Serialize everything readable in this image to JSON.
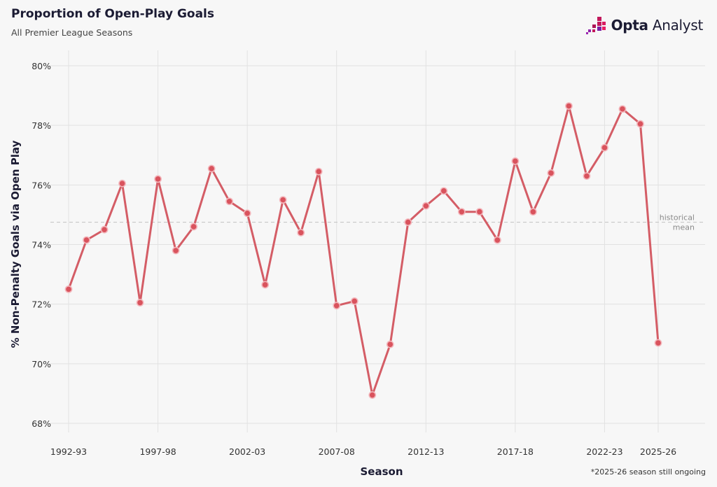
{
  "header": {
    "title": "Proportion of Open-Play Goals",
    "subtitle": "All Premier League Seasons"
  },
  "brand": {
    "name_bold": "Opta",
    "name_regular": "Analyst",
    "icon": "opta-analyst-logo",
    "colors": [
      "#c2185b",
      "#7b1fa2",
      "#e91e63"
    ]
  },
  "footnote": "*2025-26 season still ongoing",
  "colors": {
    "line": "#d45d66",
    "point_fill": "#d9535d",
    "point_stroke": "#f3b7bc",
    "mean_line": "#c8c8c8",
    "grid": "#e2e2e2",
    "background": "#f7f7f7"
  },
  "chart_data": {
    "type": "line",
    "title": "Proportion of Open-Play Goals",
    "subtitle": "All Premier League Seasons",
    "xlabel": "Season",
    "ylabel": "% Non-Penalty Goals via Open Play",
    "ylim": [
      68,
      80
    ],
    "y_ticks": [
      68,
      70,
      72,
      74,
      76,
      78,
      80
    ],
    "y_tick_labels": [
      "68%",
      "70%",
      "72%",
      "74%",
      "76%",
      "78%",
      "80%"
    ],
    "x_tick_labels": [
      "1992-93",
      "1997-98",
      "2002-03",
      "2007-08",
      "2012-13",
      "2017-18",
      "2022-23",
      "2025-26"
    ],
    "grid": true,
    "reference_line": {
      "value": 74.75,
      "label_line1": "historical",
      "label_line2": "mean"
    },
    "categories": [
      "1992-93",
      "1993-94",
      "1994-95",
      "1995-96",
      "1996-97",
      "1997-98",
      "1998-99",
      "1999-00",
      "2000-01",
      "2001-02",
      "2002-03",
      "2003-04",
      "2004-05",
      "2005-06",
      "2006-07",
      "2007-08",
      "2008-09",
      "2009-10",
      "2010-11",
      "2011-12",
      "2012-13",
      "2013-14",
      "2014-15",
      "2015-16",
      "2016-17",
      "2017-18",
      "2018-19",
      "2019-20",
      "2020-21",
      "2021-22",
      "2022-23",
      "2023-24",
      "2024-25",
      "2025-26"
    ],
    "values": [
      72.5,
      74.15,
      74.5,
      76.05,
      72.05,
      76.2,
      73.8,
      74.6,
      76.55,
      75.45,
      75.05,
      72.65,
      75.5,
      74.4,
      76.45,
      71.95,
      72.1,
      68.95,
      70.65,
      74.75,
      75.3,
      75.8,
      75.1,
      75.1,
      74.15,
      76.8,
      75.1,
      76.4,
      78.65,
      76.3,
      77.25,
      78.55,
      78.05,
      70.7
    ]
  }
}
